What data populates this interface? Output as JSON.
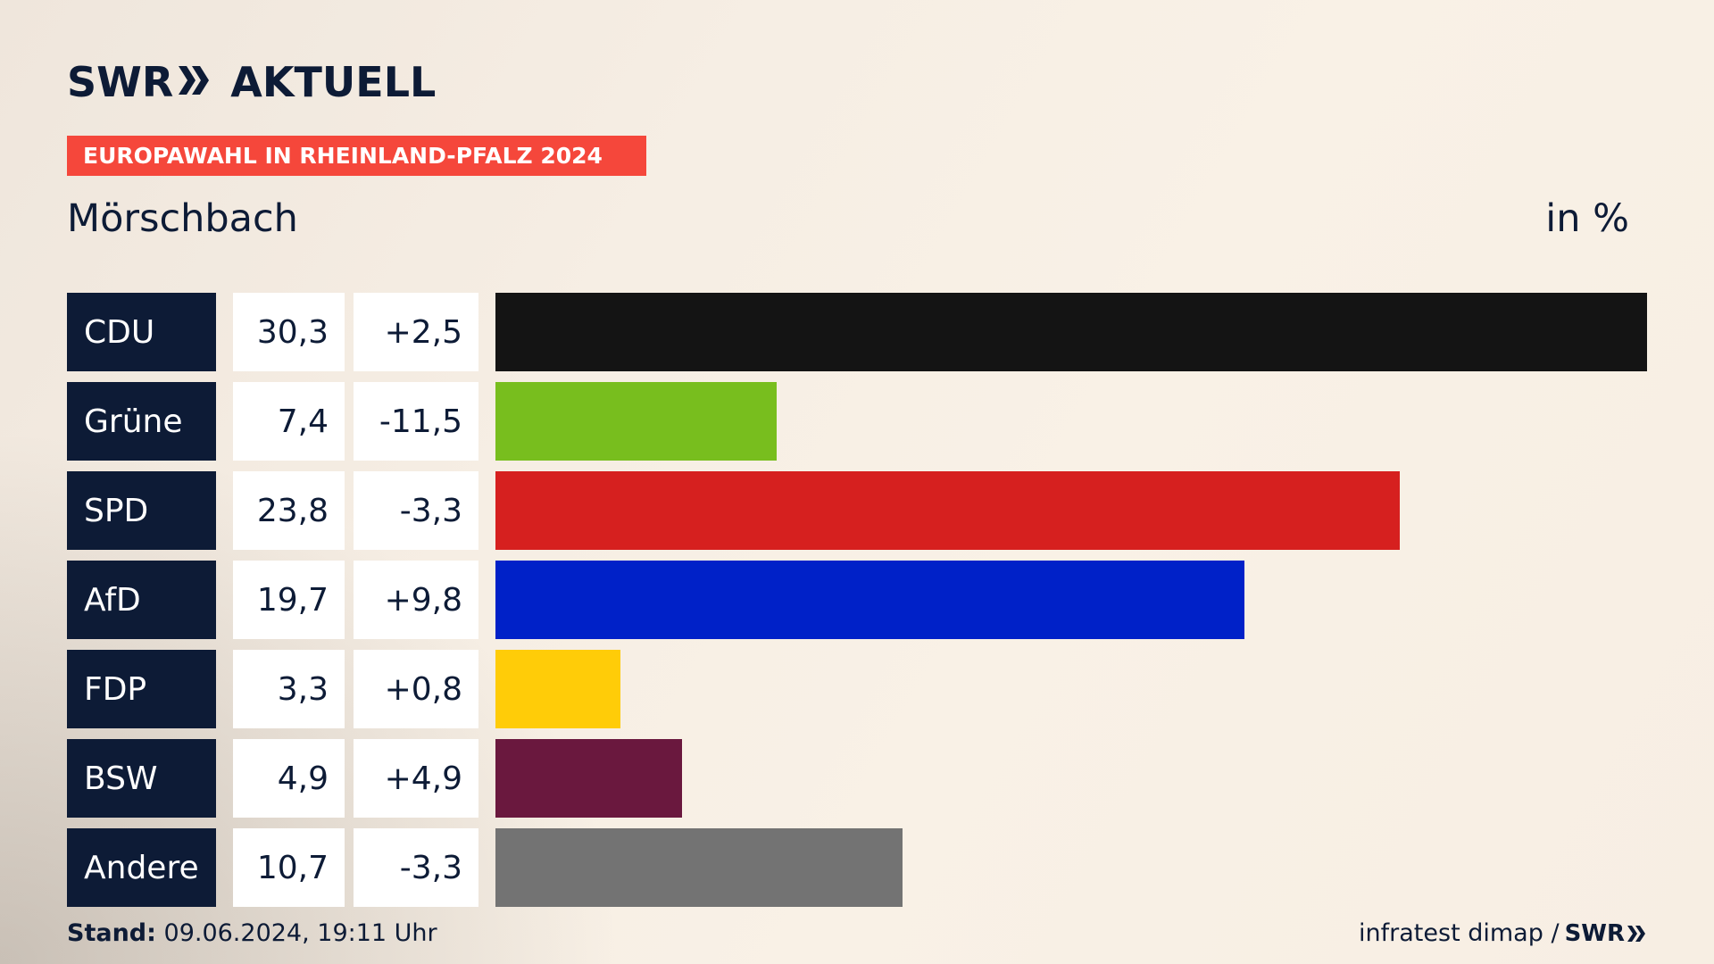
{
  "header": {
    "logo_text": "SWR",
    "logo_suffix": "AKTUELL",
    "kicker": "EUROPAWAHL IN RHEINLAND-PFALZ 2024",
    "place": "Mörschbach",
    "unit": "in %"
  },
  "footer": {
    "stand_label": "Stand:",
    "stand_value": "09.06.2024, 19:11 Uhr",
    "source": "infratest dimap /",
    "source_logo": "SWR"
  },
  "colors": {
    "navy": "#0d1b36",
    "kicker": "#f5473b"
  },
  "chart_data": {
    "type": "bar",
    "categories": [
      "CDU",
      "Grüne",
      "SPD",
      "AfD",
      "FDP",
      "BSW",
      "Andere"
    ],
    "values": [
      30.3,
      7.4,
      23.8,
      19.7,
      3.3,
      4.9,
      10.7
    ],
    "value_labels": [
      "30,3",
      "7,4",
      "23,8",
      "19,7",
      "3,3",
      "4,9",
      "10,7"
    ],
    "diff_labels": [
      "+2,5",
      "-11,5",
      "-3,3",
      "+9,8",
      "+0,8",
      "+4,9",
      "-3,3"
    ],
    "diffs": [
      2.5,
      -11.5,
      -3.3,
      9.8,
      0.8,
      4.9,
      -3.3
    ],
    "bar_colors": [
      "#141414",
      "#78be1e",
      "#d6201f",
      "#0021c8",
      "#ffcc08",
      "#6a183e",
      "#737373"
    ],
    "xlim": [
      0,
      30.3
    ],
    "orientation": "horizontal"
  }
}
